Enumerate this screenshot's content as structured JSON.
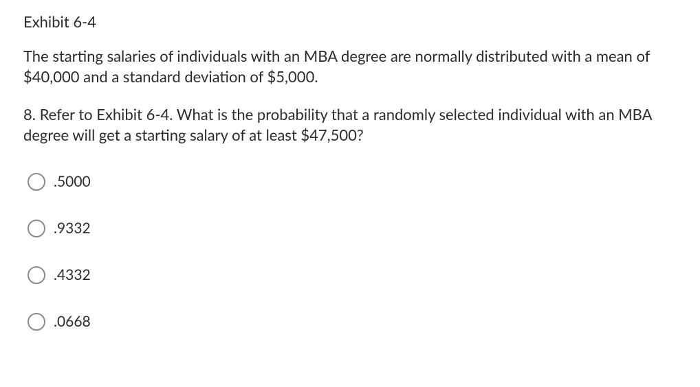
{
  "exhibit": {
    "title": "Exhibit 6-4",
    "body": "The starting salaries of individuals with an MBA degree are normally distributed with a mean of $40,000 and a standard deviation of $5,000."
  },
  "question": {
    "text": "8. Refer to Exhibit 6-4. What is the probability that a randomly selected individual with an MBA degree will get a starting salary of at least $47,500?"
  },
  "options": [
    {
      "label": ".5000",
      "selected": false
    },
    {
      "label": ".9332",
      "selected": false
    },
    {
      "label": ".4332",
      "selected": false
    },
    {
      "label": ".0668",
      "selected": false
    }
  ],
  "style": {
    "text_color": "#2b2b2b",
    "background_color": "#ffffff",
    "radio_border_color": "#8b8b8b",
    "font_size_body": 22,
    "font_size_option": 21,
    "radio_diameter": 26
  }
}
